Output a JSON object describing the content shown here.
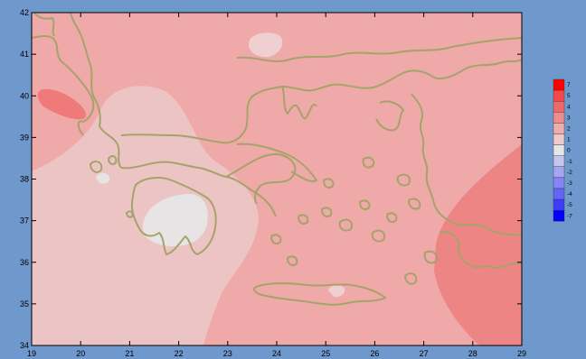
{
  "map": {
    "x_ticks": [
      "19",
      "20",
      "21",
      "22",
      "23",
      "24",
      "25",
      "26",
      "27",
      "28",
      "29"
    ],
    "y_ticks": [
      "34",
      "35",
      "36",
      "37",
      "38",
      "39",
      "40",
      "41",
      "42"
    ],
    "xlim": [
      19,
      29
    ],
    "ylim": [
      34,
      42
    ]
  },
  "legend": {
    "levels": [
      {
        "label": "7",
        "color": "#ff0000"
      },
      {
        "label": "5",
        "color": "#f24a4a"
      },
      {
        "label": "4",
        "color": "#ee6a6a"
      },
      {
        "label": "3",
        "color": "#ef8d8d"
      },
      {
        "label": "2",
        "color": "#f0adad"
      },
      {
        "label": "1",
        "color": "#efcaca"
      },
      {
        "label": "0",
        "color": "#e6e6e6"
      },
      {
        "label": "-1",
        "color": "#c5c5f0"
      },
      {
        "label": "-2",
        "color": "#a5a5f3"
      },
      {
        "label": "-3",
        "color": "#8585f4"
      },
      {
        "label": "-4",
        "color": "#6464f6"
      },
      {
        "label": "-5",
        "color": "#3c3cf9"
      },
      {
        "label": "-7",
        "color": "#0000ff"
      }
    ]
  },
  "colors": {
    "background": "#6f99cc",
    "coastline": "#a6a36a"
  }
}
